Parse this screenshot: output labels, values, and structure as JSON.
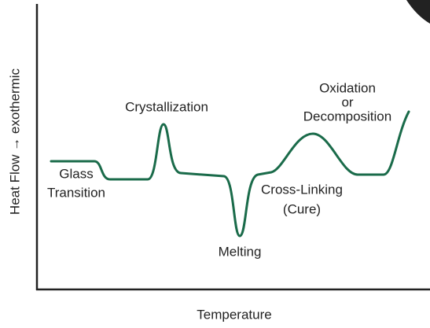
{
  "axes": {
    "y_label": "Heat Flow → exothermic",
    "x_label": "Temperature"
  },
  "annotations": [
    {
      "lines": [
        "Glass",
        "Transition"
      ]
    },
    {
      "lines": [
        "Crystallization"
      ]
    },
    {
      "lines": [
        "Melting"
      ]
    },
    {
      "lines": [
        "Cross-Linking",
        "(Cure)"
      ]
    },
    {
      "lines": [
        "Oxidation",
        "or",
        "Decomposition"
      ]
    }
  ]
}
